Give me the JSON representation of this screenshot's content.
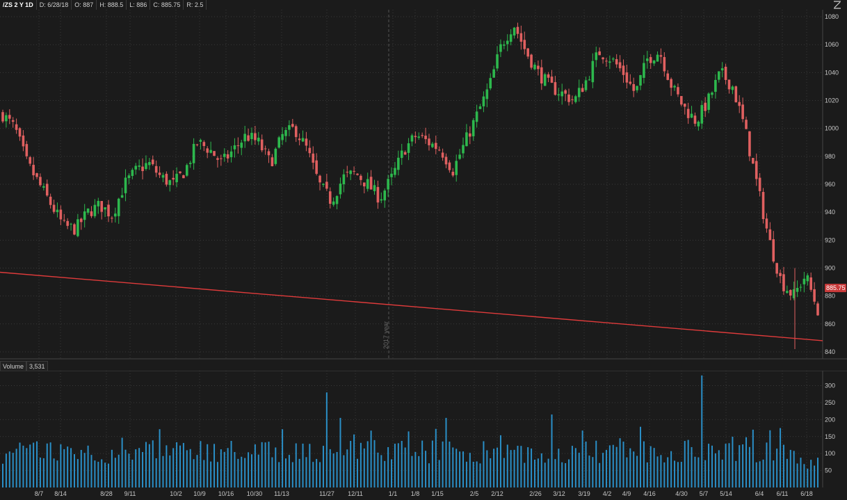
{
  "header": {
    "symbol": "/ZS 2 Y 1D",
    "date": "D: 6/28/18",
    "open": "O: 887",
    "high": "H: 888.5",
    "low": "L: 886",
    "close": "C: 885.75",
    "range": "R: 2.5"
  },
  "volume_header": {
    "label": "Volume",
    "value": "3,531"
  },
  "price_tag": "885.75",
  "divider_label": "2017 year",
  "colors": {
    "up": "#2db84d",
    "down": "#e06060",
    "volume": "#2a8fc7",
    "trendline": "#e03b3b",
    "background": "#1b1b1b",
    "grid": "#3a3a3a"
  },
  "chart_data": [
    {
      "type": "candlestick",
      "title": "",
      "ylim": [
        835,
        1085
      ],
      "y_ticks": [
        840,
        860,
        880,
        900,
        920,
        940,
        960,
        980,
        1000,
        1020,
        1040,
        1060,
        1080
      ],
      "grid": true,
      "x_ticks": [
        "8/7",
        "8/14",
        "8/28",
        "9/11",
        "10/2",
        "10/9",
        "10/16",
        "10/30",
        "11/13",
        "11/27",
        "12/11",
        "1/1",
        "1/8",
        "1/15",
        "2/5",
        "2/12",
        "2/26",
        "3/12",
        "3/19",
        "4/2",
        "4/9",
        "4/16",
        "4/30",
        "5/7",
        "5/14",
        "6/4",
        "6/11",
        "6/18"
      ],
      "close_path": [
        1010,
        1000,
        975,
        960,
        945,
        930,
        928,
        940,
        945,
        938,
        960,
        970,
        975,
        965,
        960,
        970,
        990,
        985,
        975,
        985,
        995,
        990,
        975,
        995,
        1000,
        985,
        960,
        948,
        965,
        968,
        960,
        950,
        965,
        985,
        995,
        990,
        985,
        970,
        990,
        1010,
        1030,
        1060,
        1075,
        1055,
        1040,
        1030,
        1025,
        1020,
        1035,
        1055,
        1050,
        1040,
        1025,
        1050,
        1055,
        1030,
        1015,
        1005,
        1020,
        1040,
        1030,
        1000,
        960,
        920,
        890,
        880,
        895,
        870
      ],
      "last_close": 885.75,
      "trendline": {
        "start": 897,
        "end": 848
      }
    },
    {
      "type": "bar",
      "title": "Volume",
      "ylim": [
        0,
        340
      ],
      "y_ticks": [
        50,
        100,
        150,
        200,
        250,
        300
      ],
      "peaks": [
        280,
        205,
        205,
        215,
        330,
        175,
        170
      ]
    }
  ]
}
